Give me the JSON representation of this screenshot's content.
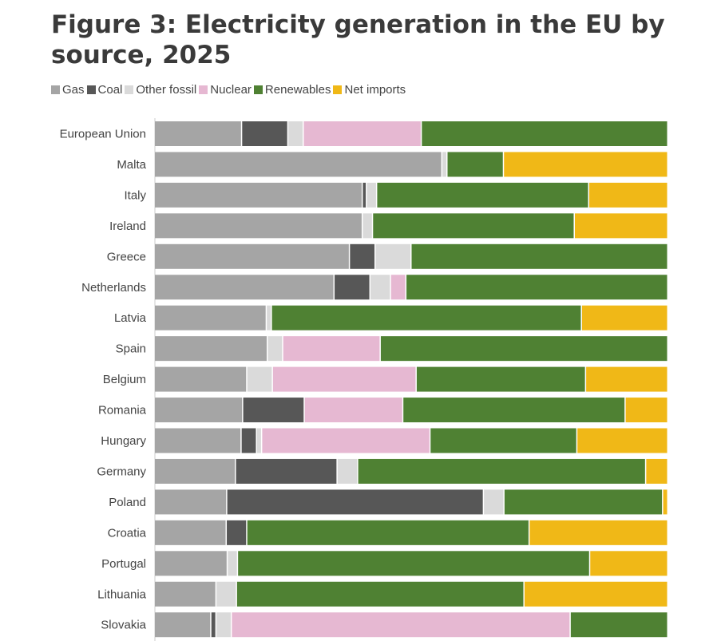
{
  "title": "Figure 3: Electricity generation in the EU by source, 2025",
  "colors": {
    "Gas": "#a5a5a5",
    "Coal": "#575757",
    "Other fossil": "#dadada",
    "Nuclear": "#e6b8d2",
    "Renewables": "#4f8133",
    "Net imports": "#f0b817"
  },
  "chart_data": {
    "type": "bar",
    "orientation": "horizontal",
    "stacked": true,
    "normalized": true,
    "xlim": [
      0,
      100
    ],
    "legend_position": "top-left",
    "categories": [
      "European Union",
      "Malta",
      "Italy",
      "Ireland",
      "Greece",
      "Netherlands",
      "Latvia",
      "Spain",
      "Belgium",
      "Romania",
      "Hungary",
      "Germany",
      "Poland",
      "Croatia",
      "Portugal",
      "Lithuania",
      "Slovakia"
    ],
    "series": [
      {
        "name": "Gas",
        "values": [
          17.0,
          56.0,
          40.5,
          40.5,
          38.0,
          35.0,
          21.8,
          22.0,
          18.0,
          17.2,
          16.9,
          15.8,
          14.1,
          14.0,
          14.2,
          12.0,
          11.0
        ]
      },
      {
        "name": "Coal",
        "values": [
          9.0,
          0.0,
          0.8,
          0.0,
          5.0,
          7.0,
          0.0,
          0.0,
          0.0,
          12.0,
          3.0,
          19.8,
          50.0,
          4.0,
          0.0,
          0.0,
          1.0
        ]
      },
      {
        "name": "Other fossil",
        "values": [
          3.0,
          1.0,
          2.0,
          2.0,
          7.0,
          4.0,
          1.0,
          3.0,
          5.0,
          0.0,
          1.0,
          4.0,
          4.0,
          0.0,
          2.0,
          4.0,
          3.0
        ]
      },
      {
        "name": "Nuclear",
        "values": [
          23.0,
          0.0,
          0.0,
          0.0,
          0.0,
          3.0,
          0.0,
          19.0,
          28.0,
          19.2,
          32.8,
          0.0,
          0.0,
          0.0,
          0.0,
          0.0,
          66.0
        ]
      },
      {
        "name": "Renewables",
        "values": [
          48.0,
          11.0,
          41.3,
          39.3,
          50.0,
          51.0,
          60.4,
          56.0,
          33.0,
          43.3,
          28.6,
          56.1,
          30.9,
          55.0,
          68.6,
          56.0,
          19.0
        ]
      },
      {
        "name": "Net imports",
        "values": [
          0.0,
          32.0,
          15.4,
          18.2,
          0.0,
          0.0,
          16.8,
          0.0,
          16.0,
          8.3,
          17.7,
          4.3,
          1.0,
          27.0,
          15.2,
          28.0,
          0.0
        ]
      }
    ]
  }
}
